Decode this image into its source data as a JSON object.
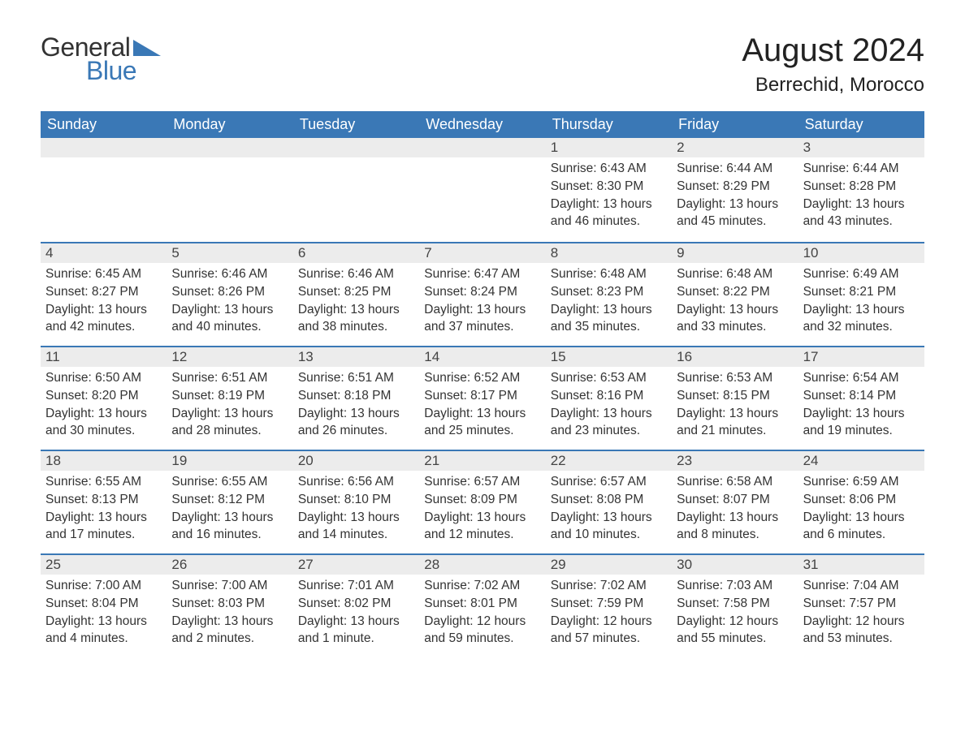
{
  "brand": {
    "general": "General",
    "blue": "Blue",
    "tri_color": "#3a78b6"
  },
  "title": {
    "month": "August 2024",
    "location": "Berrechid, Morocco"
  },
  "colors": {
    "header_bg": "#3a78b6",
    "header_text": "#ffffff",
    "band_bg": "#ececec",
    "rule": "#3a78b6",
    "text": "#333333",
    "page_bg": "#ffffff"
  },
  "dayheaders": [
    "Sunday",
    "Monday",
    "Tuesday",
    "Wednesday",
    "Thursday",
    "Friday",
    "Saturday"
  ],
  "weeks": [
    [
      {
        "empty": true
      },
      {
        "empty": true
      },
      {
        "empty": true
      },
      {
        "empty": true
      },
      {
        "num": "1",
        "sunrise": "Sunrise: 6:43 AM",
        "sunset": "Sunset: 8:30 PM",
        "daylight": "Daylight: 13 hours and 46 minutes."
      },
      {
        "num": "2",
        "sunrise": "Sunrise: 6:44 AM",
        "sunset": "Sunset: 8:29 PM",
        "daylight": "Daylight: 13 hours and 45 minutes."
      },
      {
        "num": "3",
        "sunrise": "Sunrise: 6:44 AM",
        "sunset": "Sunset: 8:28 PM",
        "daylight": "Daylight: 13 hours and 43 minutes."
      }
    ],
    [
      {
        "num": "4",
        "sunrise": "Sunrise: 6:45 AM",
        "sunset": "Sunset: 8:27 PM",
        "daylight": "Daylight: 13 hours and 42 minutes."
      },
      {
        "num": "5",
        "sunrise": "Sunrise: 6:46 AM",
        "sunset": "Sunset: 8:26 PM",
        "daylight": "Daylight: 13 hours and 40 minutes."
      },
      {
        "num": "6",
        "sunrise": "Sunrise: 6:46 AM",
        "sunset": "Sunset: 8:25 PM",
        "daylight": "Daylight: 13 hours and 38 minutes."
      },
      {
        "num": "7",
        "sunrise": "Sunrise: 6:47 AM",
        "sunset": "Sunset: 8:24 PM",
        "daylight": "Daylight: 13 hours and 37 minutes."
      },
      {
        "num": "8",
        "sunrise": "Sunrise: 6:48 AM",
        "sunset": "Sunset: 8:23 PM",
        "daylight": "Daylight: 13 hours and 35 minutes."
      },
      {
        "num": "9",
        "sunrise": "Sunrise: 6:48 AM",
        "sunset": "Sunset: 8:22 PM",
        "daylight": "Daylight: 13 hours and 33 minutes."
      },
      {
        "num": "10",
        "sunrise": "Sunrise: 6:49 AM",
        "sunset": "Sunset: 8:21 PM",
        "daylight": "Daylight: 13 hours and 32 minutes."
      }
    ],
    [
      {
        "num": "11",
        "sunrise": "Sunrise: 6:50 AM",
        "sunset": "Sunset: 8:20 PM",
        "daylight": "Daylight: 13 hours and 30 minutes."
      },
      {
        "num": "12",
        "sunrise": "Sunrise: 6:51 AM",
        "sunset": "Sunset: 8:19 PM",
        "daylight": "Daylight: 13 hours and 28 minutes."
      },
      {
        "num": "13",
        "sunrise": "Sunrise: 6:51 AM",
        "sunset": "Sunset: 8:18 PM",
        "daylight": "Daylight: 13 hours and 26 minutes."
      },
      {
        "num": "14",
        "sunrise": "Sunrise: 6:52 AM",
        "sunset": "Sunset: 8:17 PM",
        "daylight": "Daylight: 13 hours and 25 minutes."
      },
      {
        "num": "15",
        "sunrise": "Sunrise: 6:53 AM",
        "sunset": "Sunset: 8:16 PM",
        "daylight": "Daylight: 13 hours and 23 minutes."
      },
      {
        "num": "16",
        "sunrise": "Sunrise: 6:53 AM",
        "sunset": "Sunset: 8:15 PM",
        "daylight": "Daylight: 13 hours and 21 minutes."
      },
      {
        "num": "17",
        "sunrise": "Sunrise: 6:54 AM",
        "sunset": "Sunset: 8:14 PM",
        "daylight": "Daylight: 13 hours and 19 minutes."
      }
    ],
    [
      {
        "num": "18",
        "sunrise": "Sunrise: 6:55 AM",
        "sunset": "Sunset: 8:13 PM",
        "daylight": "Daylight: 13 hours and 17 minutes."
      },
      {
        "num": "19",
        "sunrise": "Sunrise: 6:55 AM",
        "sunset": "Sunset: 8:12 PM",
        "daylight": "Daylight: 13 hours and 16 minutes."
      },
      {
        "num": "20",
        "sunrise": "Sunrise: 6:56 AM",
        "sunset": "Sunset: 8:10 PM",
        "daylight": "Daylight: 13 hours and 14 minutes."
      },
      {
        "num": "21",
        "sunrise": "Sunrise: 6:57 AM",
        "sunset": "Sunset: 8:09 PM",
        "daylight": "Daylight: 13 hours and 12 minutes."
      },
      {
        "num": "22",
        "sunrise": "Sunrise: 6:57 AM",
        "sunset": "Sunset: 8:08 PM",
        "daylight": "Daylight: 13 hours and 10 minutes."
      },
      {
        "num": "23",
        "sunrise": "Sunrise: 6:58 AM",
        "sunset": "Sunset: 8:07 PM",
        "daylight": "Daylight: 13 hours and 8 minutes."
      },
      {
        "num": "24",
        "sunrise": "Sunrise: 6:59 AM",
        "sunset": "Sunset: 8:06 PM",
        "daylight": "Daylight: 13 hours and 6 minutes."
      }
    ],
    [
      {
        "num": "25",
        "sunrise": "Sunrise: 7:00 AM",
        "sunset": "Sunset: 8:04 PM",
        "daylight": "Daylight: 13 hours and 4 minutes."
      },
      {
        "num": "26",
        "sunrise": "Sunrise: 7:00 AM",
        "sunset": "Sunset: 8:03 PM",
        "daylight": "Daylight: 13 hours and 2 minutes."
      },
      {
        "num": "27",
        "sunrise": "Sunrise: 7:01 AM",
        "sunset": "Sunset: 8:02 PM",
        "daylight": "Daylight: 13 hours and 1 minute."
      },
      {
        "num": "28",
        "sunrise": "Sunrise: 7:02 AM",
        "sunset": "Sunset: 8:01 PM",
        "daylight": "Daylight: 12 hours and 59 minutes."
      },
      {
        "num": "29",
        "sunrise": "Sunrise: 7:02 AM",
        "sunset": "Sunset: 7:59 PM",
        "daylight": "Daylight: 12 hours and 57 minutes."
      },
      {
        "num": "30",
        "sunrise": "Sunrise: 7:03 AM",
        "sunset": "Sunset: 7:58 PM",
        "daylight": "Daylight: 12 hours and 55 minutes."
      },
      {
        "num": "31",
        "sunrise": "Sunrise: 7:04 AM",
        "sunset": "Sunset: 7:57 PM",
        "daylight": "Daylight: 12 hours and 53 minutes."
      }
    ]
  ]
}
